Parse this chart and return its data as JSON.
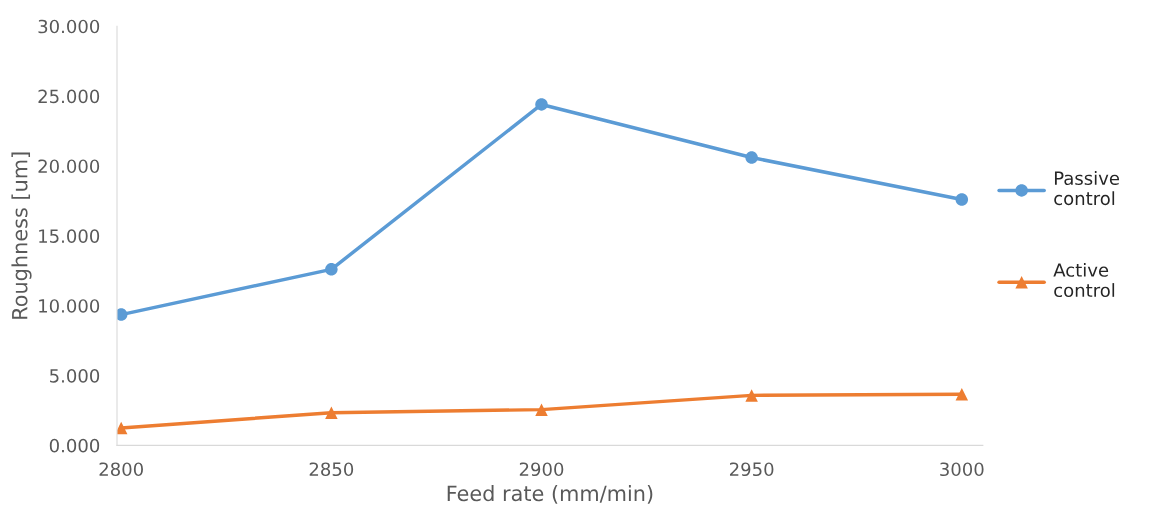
{
  "chart_data": {
    "type": "line",
    "xlabel": "Feed rate (mm/min)",
    "ylabel": "Roughness [um]",
    "categories": [
      "2800",
      "2850",
      "2900",
      "2950",
      "3000"
    ],
    "series": [
      {
        "name": "Passive control",
        "color": "#5b9bd5",
        "marker": "circle",
        "values": [
          9.36,
          12.6,
          24.4,
          20.6,
          17.6
        ]
      },
      {
        "name": "Active control",
        "color": "#ed7d31",
        "marker": "triangle",
        "values": [
          1.24,
          2.34,
          2.56,
          3.58,
          3.66
        ]
      }
    ],
    "ylim": [
      0,
      30
    ],
    "yticks": [
      {
        "value": 0,
        "label": "0.000"
      },
      {
        "value": 5,
        "label": "5.000"
      },
      {
        "value": 10,
        "label": "10.000"
      },
      {
        "value": 15,
        "label": "15.000"
      },
      {
        "value": 20,
        "label": "20.000"
      },
      {
        "value": 25,
        "label": "25.000"
      },
      {
        "value": 30,
        "label": "30.000"
      }
    ],
    "grid": false,
    "legend": "right",
    "line_style": "solid"
  }
}
